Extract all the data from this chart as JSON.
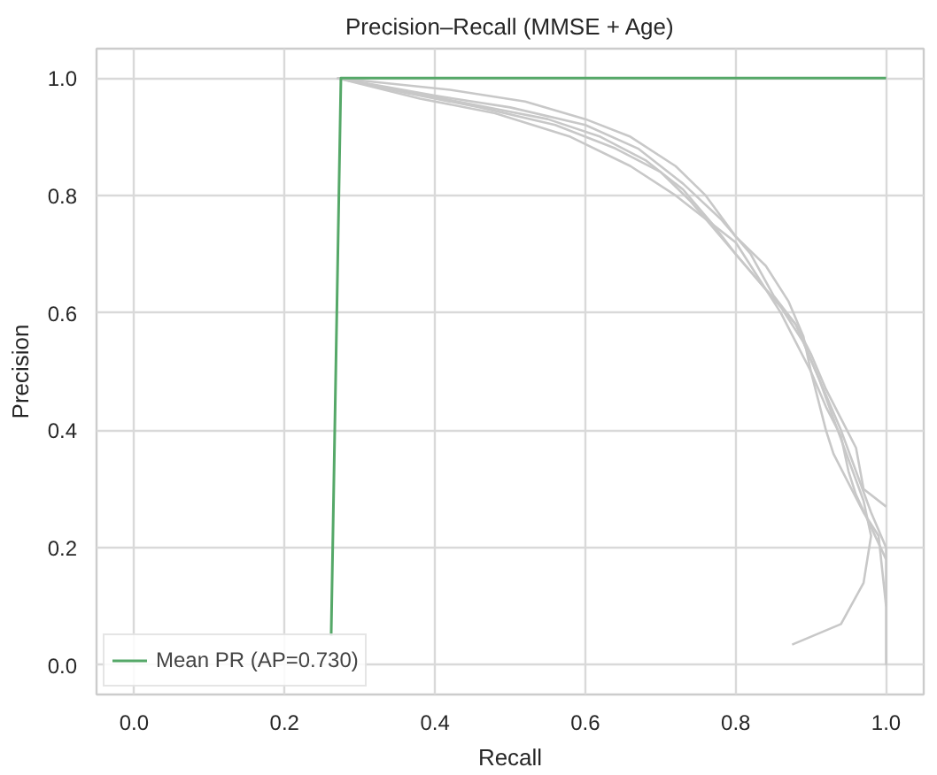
{
  "chart_data": {
    "type": "line",
    "title": "Precision–Recall (MMSE + Age)",
    "xlabel": "Recall",
    "ylabel": "Precision",
    "xlim": [
      -0.05,
      1.05
    ],
    "ylim": [
      -0.05,
      1.05
    ],
    "xticks": [
      {
        "value": 0,
        "label": "0.0"
      },
      {
        "value": 0.2,
        "label": "0.2"
      },
      {
        "value": 0.4,
        "label": "0.4"
      },
      {
        "value": 0.6,
        "label": "0.6"
      },
      {
        "value": 0.8,
        "label": "0.8"
      },
      {
        "value": 1,
        "label": "1.0"
      }
    ],
    "yticks": [
      {
        "value": 0,
        "label": "0.0"
      },
      {
        "value": 0.2,
        "label": "0.2"
      },
      {
        "value": 0.4,
        "label": "0.4"
      },
      {
        "value": 0.6,
        "label": "0.6"
      },
      {
        "value": 0.8,
        "label": "0.8"
      },
      {
        "value": 1,
        "label": "1.0"
      }
    ],
    "grid": true,
    "legend": "bottom left",
    "marker": "none",
    "line_style": "solid",
    "series": [
      {
        "color": "#c8c8c8",
        "x": [
          0.27,
          0.35,
          0.45,
          0.55,
          0.62,
          0.68,
          0.73,
          0.77,
          0.8,
          0.84,
          0.88,
          0.9,
          0.92,
          0.94,
          0.96,
          0.98,
          1.0,
          1.0
        ],
        "values": [
          1.0,
          0.98,
          0.955,
          0.93,
          0.9,
          0.86,
          0.81,
          0.75,
          0.7,
          0.64,
          0.58,
          0.52,
          0.46,
          0.4,
          0.33,
          0.26,
          0.2,
          0.0
        ]
      },
      {
        "color": "#c8c8c8",
        "x": [
          0.27,
          0.36,
          0.46,
          0.56,
          0.64,
          0.7,
          0.74,
          0.78,
          0.82,
          0.86,
          0.89,
          0.91,
          0.93,
          0.95,
          0.97,
          0.98,
          0.97,
          0.94,
          0.875
        ],
        "values": [
          1.0,
          0.975,
          0.95,
          0.92,
          0.88,
          0.84,
          0.79,
          0.73,
          0.67,
          0.61,
          0.55,
          0.49,
          0.42,
          0.35,
          0.28,
          0.22,
          0.14,
          0.07,
          0.035
        ]
      },
      {
        "color": "#c8c8c8",
        "x": [
          0.27,
          0.38,
          0.48,
          0.58,
          0.66,
          0.72,
          0.76,
          0.8,
          0.83,
          0.86,
          0.88,
          0.9,
          0.91,
          0.92,
          0.93,
          0.95,
          0.97,
          0.99,
          1.0
        ],
        "values": [
          1.0,
          0.965,
          0.94,
          0.9,
          0.85,
          0.8,
          0.76,
          0.72,
          0.66,
          0.6,
          0.55,
          0.5,
          0.45,
          0.4,
          0.36,
          0.31,
          0.26,
          0.22,
          0.1
        ]
      },
      {
        "color": "#c8c8c8",
        "x": [
          0.27,
          0.4,
          0.5,
          0.6,
          0.67,
          0.73,
          0.78,
          0.82,
          0.85,
          0.88,
          0.9,
          0.92,
          0.94,
          0.96,
          0.97,
          1.0
        ],
        "values": [
          1.0,
          0.97,
          0.95,
          0.92,
          0.88,
          0.82,
          0.76,
          0.7,
          0.63,
          0.58,
          0.53,
          0.47,
          0.42,
          0.37,
          0.3,
          0.27
        ]
      },
      {
        "color": "#c8c8c8",
        "x": [
          0.27,
          0.42,
          0.52,
          0.6,
          0.66,
          0.72,
          0.76,
          0.8,
          0.84,
          0.87,
          0.89,
          0.9,
          0.92,
          0.94,
          0.95,
          0.96,
          1.0
        ],
        "values": [
          1.0,
          0.98,
          0.96,
          0.93,
          0.9,
          0.85,
          0.8,
          0.73,
          0.68,
          0.62,
          0.56,
          0.5,
          0.44,
          0.39,
          0.33,
          0.29,
          0.18
        ]
      },
      {
        "name": "Mean PR (AP=0.730)",
        "color": "#55a868",
        "x": [
          0.262,
          0.275,
          1.0
        ],
        "values": [
          0.05,
          1.0,
          1.0
        ]
      }
    ]
  }
}
